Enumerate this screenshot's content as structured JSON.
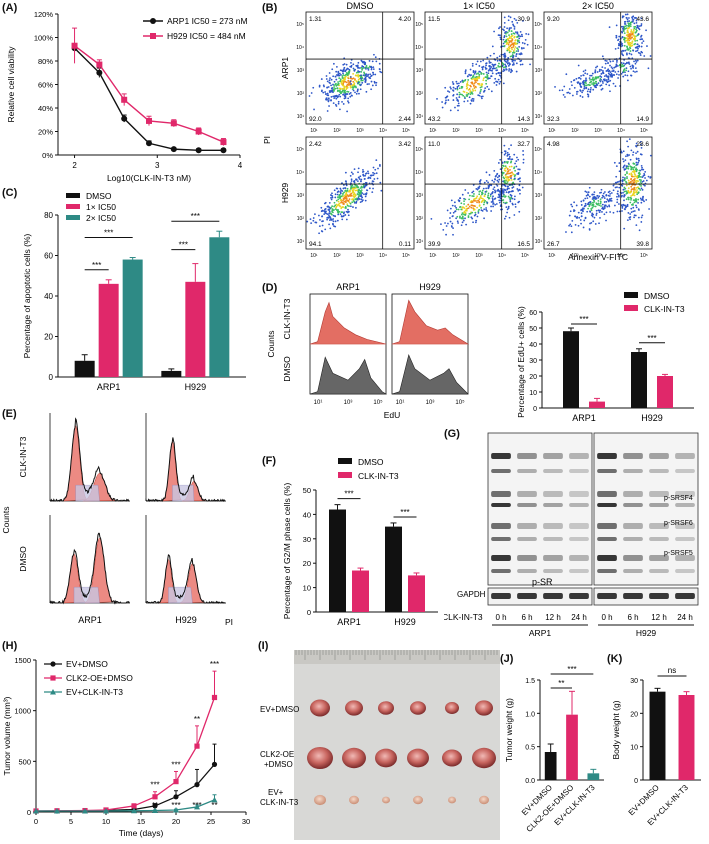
{
  "panels": {
    "A": {
      "label": "(A)"
    },
    "B": {
      "label": "(B)"
    },
    "C": {
      "label": "(C)"
    },
    "D": {
      "label": "(D)"
    },
    "E": {
      "label": "(E)"
    },
    "F": {
      "label": "(F)"
    },
    "G": {
      "label": "(G)"
    },
    "H": {
      "label": "(H)"
    },
    "I": {
      "label": "(I)"
    },
    "J": {
      "label": "(J)"
    },
    "K": {
      "label": "(K)"
    }
  },
  "colors": {
    "black": "#111111",
    "pink": "#e0286a",
    "teal": "#2e8a85",
    "red_hist": "#e65c55",
    "grey_hist": "#666666"
  },
  "chart_data": [
    {
      "id": "A",
      "type": "line",
      "xlabel": "Log10(CLK-IN-T3 nM)",
      "ylabel": "Relative cell viability",
      "xlim": [
        1.8,
        4
      ],
      "ylim": [
        0,
        120
      ],
      "xticks": [
        "2",
        "3",
        "4"
      ],
      "yticks": [
        "0%",
        "20%",
        "40%",
        "60%",
        "80%",
        "100%",
        "120%"
      ],
      "series": [
        {
          "name": "ARP1 IC50 = 273 nM",
          "color": "#111111",
          "x": [
            2,
            2.3,
            2.6,
            2.9,
            3.2,
            3.5,
            3.8
          ],
          "y": [
            91,
            70,
            31,
            10,
            5,
            4,
            4
          ],
          "err": [
            3,
            4,
            3,
            2,
            1,
            1,
            1
          ]
        },
        {
          "name": "H929 IC50 = 484 nM",
          "color": "#e0286a",
          "x": [
            2,
            2.3,
            2.6,
            2.9,
            3.2,
            3.5,
            3.8
          ],
          "y": [
            93,
            77,
            47,
            29,
            27,
            20,
            11
          ],
          "err": [
            15,
            4,
            5,
            4,
            3,
            3,
            3
          ]
        }
      ]
    },
    {
      "id": "B",
      "type": "scatter",
      "col_titles": [
        "DMSO",
        "1× IC50",
        "2× IC50"
      ],
      "row_labels": [
        "ARP1",
        "H929"
      ],
      "xlabel": "Annexin V-FITC",
      "ylabel": "PI",
      "ticks": [
        "10¹",
        "10²",
        "10³",
        "10⁴",
        "10⁵"
      ],
      "quadrants": [
        [
          [
            "1.31",
            "4.20",
            "92.0",
            "2.44"
          ],
          [
            "11.5",
            "30.9",
            "43.2",
            "14.3"
          ],
          [
            "9.20",
            "43.6",
            "32.3",
            "14.9"
          ]
        ],
        [
          [
            "2.42",
            "3.42",
            "94.1",
            "0.11"
          ],
          [
            "11.0",
            "32.7",
            "39.9",
            "16.5"
          ],
          [
            "4.98",
            "28.6",
            "26.7",
            "39.8"
          ]
        ]
      ]
    },
    {
      "id": "C",
      "type": "bar",
      "ylabel": "Percentage of apoptotic cells (%)",
      "ylim": [
        0,
        80
      ],
      "yticks": [
        "0",
        "20",
        "40",
        "60",
        "80"
      ],
      "categories": [
        "ARP1",
        "H929"
      ],
      "legend": [
        "DMSO",
        "1× IC50",
        "2× IC50"
      ],
      "series": [
        {
          "name": "DMSO",
          "color": "#111111",
          "values": [
            8,
            3
          ],
          "err": [
            3,
            1
          ]
        },
        {
          "name": "1× IC50",
          "color": "#e0286a",
          "values": [
            46,
            47
          ],
          "err": [
            2,
            9
          ]
        },
        {
          "name": "2× IC50",
          "color": "#2e8a85",
          "values": [
            58,
            69
          ],
          "err": [
            1,
            3
          ]
        }
      ],
      "sig": [
        "***",
        "***",
        "***",
        "***"
      ]
    },
    {
      "id": "D-hist",
      "type": "area",
      "col_titles": [
        "ARP1",
        "H929"
      ],
      "row_labels": [
        "CLK-IN-T3",
        "DMSO"
      ],
      "ylabel": "Counts",
      "xlabel": "EdU",
      "ticks": [
        "10¹",
        "10³",
        "10⁵"
      ]
    },
    {
      "id": "D-bar",
      "type": "bar",
      "ylabel": "Percentage of EdU+ cells (%)",
      "ylim": [
        0,
        60
      ],
      "yticks": [
        "0",
        "10",
        "20",
        "30",
        "40",
        "50",
        "60"
      ],
      "categories": [
        "ARP1",
        "H929"
      ],
      "legend": [
        "DMSO",
        "CLK-IN-T3"
      ],
      "series": [
        {
          "name": "DMSO",
          "color": "#111111",
          "values": [
            48,
            35
          ],
          "err": [
            2,
            2
          ]
        },
        {
          "name": "CLK-IN-T3",
          "color": "#e0286a",
          "values": [
            4,
            20
          ],
          "err": [
            2,
            1
          ]
        }
      ],
      "sig": [
        "***",
        "***"
      ]
    },
    {
      "id": "E",
      "type": "area",
      "col_titles": [
        "ARP1",
        "H929"
      ],
      "row_labels": [
        "CLK-IN-T3",
        "DMSO"
      ],
      "ylabel": "Counts",
      "xlabel": "PI",
      "yticks": [
        "0",
        "20",
        "40",
        "60",
        "80",
        "100",
        "120"
      ],
      "yticks2": [
        "0",
        "20",
        "40",
        "60",
        "80",
        "100",
        "120",
        "140"
      ],
      "xticks": [
        "0",
        "50",
        "100",
        "150",
        "200",
        "250"
      ]
    },
    {
      "id": "F",
      "type": "bar",
      "ylabel": "Percentage of G2/M phase cells (%)",
      "ylim": [
        0,
        50
      ],
      "yticks": [
        "0",
        "10",
        "20",
        "30",
        "40",
        "50"
      ],
      "categories": [
        "ARP1",
        "H929"
      ],
      "legend": [
        "DMSO",
        "CLK-IN-T3"
      ],
      "series": [
        {
          "name": "DMSO",
          "color": "#111111",
          "values": [
            42,
            35
          ],
          "err": [
            2,
            1.5
          ]
        },
        {
          "name": "CLK-IN-T3",
          "color": "#e0286a",
          "values": [
            17,
            15
          ],
          "err": [
            1,
            1
          ]
        }
      ],
      "sig": [
        "***",
        "***"
      ]
    },
    {
      "id": "H",
      "type": "line",
      "xlabel": "Time (days)",
      "ylabel": "Tumor volume (mm³)",
      "xlim": [
        0,
        30
      ],
      "ylim": [
        0,
        1500
      ],
      "xticks": [
        "0",
        "5",
        "10",
        "15",
        "20",
        "25",
        "30"
      ],
      "yticks": [
        "0",
        "500",
        "1000",
        "1500"
      ],
      "series": [
        {
          "name": "EV+DMSO",
          "color": "#111111",
          "marker": "circle",
          "x": [
            0,
            3,
            7,
            10,
            14,
            17,
            20,
            23,
            25.5
          ],
          "y": [
            10,
            10,
            12,
            15,
            25,
            60,
            150,
            270,
            470
          ],
          "err": [
            0,
            0,
            0,
            5,
            10,
            20,
            60,
            150,
            200
          ]
        },
        {
          "name": "CLK2-OE+DMSO",
          "color": "#e0286a",
          "marker": "square",
          "x": [
            0,
            3,
            7,
            10,
            14,
            17,
            20,
            23,
            25.5
          ],
          "y": [
            10,
            12,
            14,
            20,
            60,
            150,
            300,
            650,
            1130
          ],
          "err": [
            0,
            0,
            0,
            5,
            20,
            50,
            100,
            200,
            260
          ]
        },
        {
          "name": "EV+CLK-IN-T3",
          "color": "#2e8a85",
          "marker": "triangle",
          "x": [
            0,
            3,
            7,
            10,
            14,
            17,
            20,
            23,
            25.5
          ],
          "y": [
            10,
            10,
            10,
            10,
            12,
            15,
            20,
            50,
            120
          ],
          "err": [
            0,
            0,
            0,
            2,
            3,
            5,
            8,
            20,
            50
          ]
        }
      ],
      "sig_top": [
        {
          "x": 17,
          "text": "***"
        },
        {
          "x": 20,
          "text": "***"
        },
        {
          "x": 23,
          "text": "**"
        },
        {
          "x": 25.5,
          "text": "***"
        }
      ],
      "sig_bottom": [
        {
          "x": 17,
          "text": "**"
        },
        {
          "x": 20,
          "text": "***"
        },
        {
          "x": 23,
          "text": "***"
        },
        {
          "x": 25.5,
          "text": "**"
        }
      ]
    },
    {
      "id": "J",
      "type": "bar",
      "ylabel": "Tumor weight (g)",
      "ylim": [
        0,
        1.5
      ],
      "yticks": [
        "0.0",
        "0.5",
        "1.0",
        "1.5"
      ],
      "categories": [
        "EV+DMSO",
        "CLK2-OE+DMSO",
        "EV+CLK-IN-T3"
      ],
      "values": [
        0.42,
        0.98,
        0.1
      ],
      "err": [
        0.12,
        0.35,
        0.06
      ],
      "colors": [
        "#111111",
        "#e0286a",
        "#2e8a85"
      ],
      "sig": [
        "**",
        "***"
      ]
    },
    {
      "id": "K",
      "type": "bar",
      "ylabel": "Body weight (g)",
      "ylim": [
        0,
        30
      ],
      "yticks": [
        "0",
        "10",
        "20",
        "30"
      ],
      "categories": [
        "EV+DMSO",
        "EV+CLK-IN-T3"
      ],
      "values": [
        26.5,
        25.5
      ],
      "err": [
        1,
        1
      ],
      "colors": [
        "#111111",
        "#e0286a"
      ],
      "sig": [
        "ns"
      ]
    }
  ],
  "blot": {
    "band_labels": [
      "p-SRSF4",
      "p-SRSF6",
      "p-SRSF5"
    ],
    "protein_label": "p-SR",
    "loading_label": "GAPDH",
    "treatment_label": "CLK-IN-T3",
    "timepoints": [
      "0 h",
      "6 h",
      "12 h",
      "24 h"
    ],
    "cell_lines": [
      "ARP1",
      "H929"
    ]
  },
  "photo": {
    "row_labels": [
      "EV+DMSO",
      "CLK2-OE\n+DMSO",
      "EV+\nCLK-IN-T3"
    ],
    "row_label_1": "EV+DMSO",
    "row_label_2a": "CLK2-OE",
    "row_label_2b": "+DMSO",
    "row_label_3a": "EV+",
    "row_label_3b": "CLK-IN-T3"
  }
}
